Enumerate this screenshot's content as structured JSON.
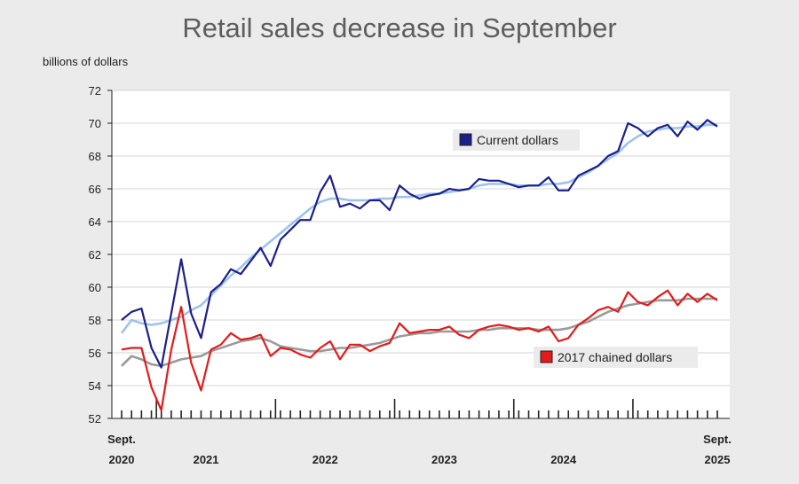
{
  "chart_data": {
    "type": "line",
    "title": "Retail sales decrease in September",
    "ylabel": "billions of dollars",
    "xlabel": "",
    "ylim": [
      52,
      72
    ],
    "yticks": [
      52,
      54,
      56,
      58,
      60,
      62,
      64,
      66,
      68,
      70,
      72
    ],
    "start": "Sept. 2020",
    "end": "Sept. 2025",
    "n_months": 61,
    "x_labels": [
      {
        "month_index": 0,
        "line1": "Sept.",
        "line2": "2020"
      },
      {
        "month_index": 8.5,
        "line1": "",
        "line2": "2021"
      },
      {
        "month_index": 20.5,
        "line1": "",
        "line2": "2022"
      },
      {
        "month_index": 32.5,
        "line1": "",
        "line2": "2023"
      },
      {
        "month_index": 44.5,
        "line1": "",
        "line2": "2024"
      },
      {
        "month_index": 60,
        "line1": "Sept.",
        "line2": "2025"
      }
    ],
    "year_boundaries": [
      3.5,
      15.5,
      27.5,
      39.5,
      51.5
    ],
    "legend": [
      {
        "label": "Current dollars",
        "color": "#1b1f8a"
      },
      {
        "label": "2017 chained dollars",
        "color": "#e31b1b"
      }
    ],
    "series": [
      {
        "name": "Current dollars",
        "color": "#1b1f8a",
        "values": [
          58.0,
          58.5,
          58.7,
          56.3,
          55.1,
          58.4,
          61.7,
          58.4,
          56.9,
          59.7,
          60.2,
          61.1,
          60.8,
          61.6,
          62.4,
          61.3,
          62.9,
          63.5,
          64.1,
          64.1,
          65.8,
          66.8,
          64.9,
          65.1,
          64.8,
          65.3,
          65.3,
          64.7,
          66.2,
          65.7,
          65.4,
          65.6,
          65.7,
          66.0,
          65.9,
          66.0,
          66.6,
          66.5,
          66.5,
          66.3,
          66.1,
          66.2,
          66.2,
          66.7,
          65.9,
          65.9,
          66.8,
          67.1,
          67.4,
          68.0,
          68.3,
          70.0,
          69.7,
          69.2,
          69.7,
          69.9,
          69.2,
          70.1,
          69.6,
          70.2,
          69.8
        ]
      },
      {
        "name": "Current dollars trend",
        "color": "#9dc3ec",
        "values": [
          57.2,
          58.0,
          57.8,
          57.7,
          57.8,
          58.0,
          58.2,
          58.6,
          58.9,
          59.5,
          60.1,
          60.7,
          61.2,
          61.8,
          62.3,
          62.8,
          63.3,
          63.8,
          64.3,
          64.8,
          65.2,
          65.4,
          65.4,
          65.3,
          65.3,
          65.3,
          65.4,
          65.4,
          65.5,
          65.5,
          65.6,
          65.7,
          65.7,
          65.8,
          65.9,
          66.0,
          66.2,
          66.3,
          66.3,
          66.3,
          66.2,
          66.2,
          66.2,
          66.3,
          66.3,
          66.4,
          66.7,
          67.0,
          67.4,
          67.8,
          68.2,
          68.8,
          69.2,
          69.5,
          69.6,
          69.7,
          69.7,
          69.8,
          69.8,
          69.9,
          69.9
        ]
      },
      {
        "name": "2017 chained dollars",
        "color": "#e31b1b",
        "values": [
          56.2,
          56.3,
          56.3,
          53.9,
          52.5,
          56.2,
          58.8,
          55.4,
          53.7,
          56.2,
          56.5,
          57.2,
          56.8,
          56.9,
          57.1,
          55.8,
          56.3,
          56.2,
          55.9,
          55.7,
          56.3,
          56.7,
          55.6,
          56.5,
          56.5,
          56.1,
          56.4,
          56.6,
          57.8,
          57.2,
          57.3,
          57.4,
          57.4,
          57.6,
          57.1,
          56.9,
          57.4,
          57.6,
          57.7,
          57.6,
          57.4,
          57.5,
          57.3,
          57.6,
          56.7,
          56.9,
          57.7,
          58.1,
          58.6,
          58.8,
          58.5,
          59.7,
          59.1,
          58.9,
          59.4,
          59.8,
          58.9,
          59.6,
          59.1,
          59.6,
          59.2
        ]
      },
      {
        "name": "2017 chained dollars trend",
        "color": "#9a9a9a",
        "values": [
          55.2,
          55.8,
          55.6,
          55.3,
          55.2,
          55.4,
          55.6,
          55.7,
          55.8,
          56.1,
          56.3,
          56.5,
          56.7,
          56.8,
          56.9,
          56.7,
          56.4,
          56.3,
          56.2,
          56.1,
          56.1,
          56.2,
          56.3,
          56.3,
          56.4,
          56.5,
          56.6,
          56.8,
          57.0,
          57.1,
          57.2,
          57.2,
          57.3,
          57.3,
          57.3,
          57.3,
          57.4,
          57.4,
          57.5,
          57.5,
          57.5,
          57.5,
          57.4,
          57.4,
          57.4,
          57.5,
          57.7,
          57.9,
          58.2,
          58.5,
          58.7,
          58.9,
          59.0,
          59.1,
          59.2,
          59.2,
          59.2,
          59.3,
          59.3,
          59.3,
          59.3
        ]
      }
    ]
  }
}
